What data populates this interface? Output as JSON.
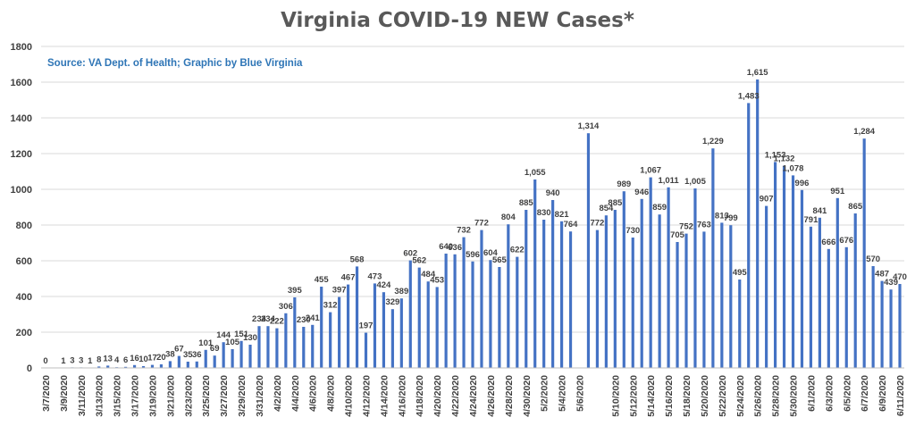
{
  "chart_data": {
    "type": "bar",
    "title": "Virginia COVID-19 NEW Cases*",
    "annotation": "Source: VA Dept. of Health; Graphic by Blue Virginia",
    "xlabel": "",
    "ylabel": "",
    "ylim": [
      0,
      1800
    ],
    "yticks": [
      "0",
      "200",
      "400",
      "600",
      "800",
      "1000",
      "1200",
      "1400",
      "1600",
      "1800"
    ],
    "grid": true,
    "bar_color": "#4472c4",
    "categories": [
      "3/7/2020",
      "3/8/2020",
      "3/9/2020",
      "3/10/2020",
      "3/11/2020",
      "3/12/2020",
      "3/13/2020",
      "3/14/2020",
      "3/15/2020",
      "3/16/2020",
      "3/17/2020",
      "3/18/2020",
      "3/19/2020",
      "3/20/2020",
      "3/21/2020",
      "3/22/2020",
      "3/23/2020",
      "3/24/2020",
      "3/25/2020",
      "3/26/2020",
      "3/27/2020",
      "3/28/2020",
      "3/29/2020",
      "3/30/2020",
      "3/31/2020",
      "4/1/2020",
      "4/2/2020",
      "4/3/2020",
      "4/4/2020",
      "4/5/2020",
      "4/6/2020",
      "4/7/2020",
      "4/8/2020",
      "4/9/2020",
      "4/10/2020",
      "4/11/2020",
      "4/12/2020",
      "4/13/2020",
      "4/14/2020",
      "4/15/2020",
      "4/16/2020",
      "4/17/2020",
      "4/18/2020",
      "4/19/2020",
      "4/20/2020",
      "4/21/2020",
      "4/22/2020",
      "4/23/2020",
      "4/24/2020",
      "4/25/2020",
      "4/26/2020",
      "4/27/2020",
      "4/28/2020",
      "4/29/2020",
      "4/30/2020",
      "5/1/2020",
      "5/2/2020",
      "5/3/2020",
      "5/4/2020",
      "5/5/2020",
      "5/6/2020",
      "5/7/2020",
      "5/8/2020",
      "5/9/2020",
      "5/10/2020",
      "5/11/2020",
      "5/12/2020",
      "5/13/2020",
      "5/14/2020",
      "5/15/2020",
      "5/16/2020",
      "5/17/2020",
      "5/18/2020",
      "5/19/2020",
      "5/20/2020",
      "5/21/2020",
      "5/22/2020",
      "5/23/2020",
      "5/24/2020",
      "5/25/2020",
      "5/26/2020",
      "5/27/2020",
      "5/28/2020",
      "5/29/2020",
      "5/30/2020",
      "5/31/2020",
      "6/1/2020",
      "6/2/2020",
      "6/3/2020",
      "6/4/2020",
      "6/5/2020",
      "6/6/2020",
      "6/7/2020",
      "6/8/2020",
      "6/9/2020",
      "6/10/2020",
      "6/11/2020"
    ],
    "xtick_labels": [
      "3/7/2020",
      "3/9/2020",
      "3/11/2020",
      "3/13/2020",
      "3/15/2020",
      "3/17/2020",
      "3/19/2020",
      "3/21/2020",
      "3/23/2020",
      "3/25/2020",
      "3/27/2020",
      "3/29/2020",
      "3/31/2020",
      "4/2/2020",
      "4/4/2020",
      "4/6/2020",
      "4/8/2020",
      "4/10/2020",
      "4/12/2020",
      "4/14/2020",
      "4/16/2020",
      "4/18/2020",
      "4/20/2020",
      "4/22/2020",
      "4/24/2020",
      "4/26/2020",
      "4/28/2020",
      "4/30/2020",
      "5/2/2020",
      "5/4/2020",
      "5/6/2020",
      "5/10/2020",
      "5/12/2020",
      "5/14/2020",
      "5/16/2020",
      "5/18/2020",
      "5/20/2020",
      "5/22/2020",
      "5/24/2020",
      "5/26/2020",
      "5/28/2020",
      "5/30/2020",
      "6/1/2020",
      "6/3/2020",
      "6/5/2020",
      "6/7/2020",
      "6/9/2020",
      "6/11/2020"
    ],
    "values": [
      0,
      null,
      1,
      3,
      3,
      1,
      8,
      13,
      4,
      6,
      16,
      10,
      17,
      20,
      38,
      67,
      35,
      36,
      101,
      69,
      144,
      105,
      151,
      130,
      234,
      234,
      222,
      306,
      395,
      230,
      241,
      455,
      312,
      397,
      467,
      568,
      197,
      473,
      424,
      329,
      389,
      602,
      562,
      484,
      453,
      640,
      636,
      732,
      596,
      772,
      604,
      565,
      804,
      622,
      885,
      1055,
      830,
      940,
      821,
      764,
      null,
      1314,
      772,
      854,
      885,
      989,
      730,
      946,
      1067,
      859,
      1011,
      705,
      752,
      1005,
      763,
      1229,
      813,
      799,
      495,
      1483,
      1615,
      907,
      1153,
      1132,
      1078,
      996,
      791,
      841,
      666,
      951,
      676,
      865,
      1284,
      570,
      487,
      439,
      470
    ],
    "labels": [
      "0",
      "",
      "1",
      "3",
      "3",
      "1",
      "8",
      "13",
      "4",
      "6",
      "16",
      "10",
      "17",
      "20",
      "38",
      "67",
      "35",
      "36",
      "101",
      "69",
      "144",
      "105",
      "151",
      "130",
      "234",
      "234",
      "222",
      "306",
      "395",
      "230",
      "241",
      "455",
      "312",
      "397",
      "467",
      "568",
      "197",
      "473",
      "424",
      "329",
      "389",
      "602",
      "562",
      "484",
      "453",
      "640",
      "636",
      "732",
      "596",
      "772",
      "604",
      "565",
      "804",
      "622",
      "885",
      "1,055",
      "830",
      "940",
      "821",
      "764",
      "",
      "1,314",
      "772",
      "854",
      "885",
      "989",
      "730",
      "946",
      "1,067",
      "859",
      "1,011",
      "705",
      "752",
      "1,005",
      "763",
      "1,229",
      "813",
      "799",
      "495",
      "1,483",
      "1,615",
      "907",
      "1,153",
      "1,132",
      "1,078",
      "996",
      "791",
      "841",
      "666",
      "951",
      "676",
      "865",
      "1,284",
      "570",
      "487",
      "439",
      "470"
    ]
  }
}
